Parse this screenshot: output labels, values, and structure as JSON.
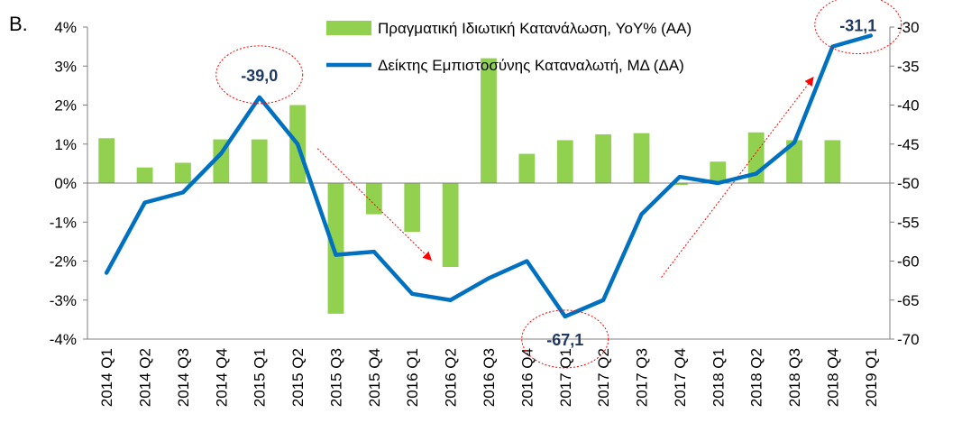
{
  "panel_label": "B.",
  "chart_data": {
    "type": "bar+line",
    "categories": [
      "2014 Q1",
      "2014 Q2",
      "2014 Q3",
      "2014 Q4",
      "2015 Q1",
      "2015 Q2",
      "2015 Q3",
      "2015 Q4",
      "2016 Q1",
      "2016 Q2",
      "2016 Q3",
      "2016 Q4",
      "2017 Q1",
      "2017 Q2",
      "2017 Q3",
      "2017 Q4",
      "2018 Q1",
      "2018 Q2",
      "2018 Q3",
      "2018 Q4",
      "2019 Q1"
    ],
    "series": [
      {
        "name": "Πραγματική Ιδιωτική Κατανάλωση, YoY% (ΑΑ)",
        "kind": "bar",
        "axis": "left",
        "color": "#92d050",
        "values": [
          1.15,
          0.4,
          0.52,
          1.12,
          1.12,
          2.0,
          -3.35,
          -0.8,
          -1.25,
          -2.15,
          3.2,
          0.75,
          1.1,
          1.25,
          1.28,
          -0.05,
          0.55,
          1.3,
          1.1,
          1.1,
          null
        ]
      },
      {
        "name": "Δείκτης Εμπιστοσύνης Καταναλωτή, ΜΔ (ΔΑ)",
        "kind": "line",
        "axis": "right",
        "color": "#0070c0",
        "values": [
          -61.5,
          -52.5,
          -51.2,
          -46.2,
          -39.0,
          -45.0,
          -59.2,
          -58.8,
          -64.2,
          -65.0,
          -62.2,
          -60.0,
          -67.1,
          -65.0,
          -54.0,
          -49.2,
          -50.0,
          -48.8,
          -44.8,
          -32.5,
          -31.1
        ]
      }
    ],
    "y_left": {
      "min": -4,
      "max": 4,
      "step": 1,
      "tick_labels": [
        "-4%",
        "-3%",
        "-2%",
        "-1%",
        "0%",
        "1%",
        "2%",
        "3%",
        "4%"
      ]
    },
    "y_right": {
      "min": -70,
      "max": -30,
      "step": 5,
      "tick_labels": [
        "-70",
        "-65",
        "-60",
        "-55",
        "-50",
        "-45",
        "-40",
        "-35",
        "-30"
      ]
    },
    "annotations": [
      {
        "text": "-39,0",
        "category": "2015 Q1"
      },
      {
        "text": "-67,1",
        "category": "2017 Q1"
      },
      {
        "text": "-31,1",
        "category": "2019 Q1"
      }
    ],
    "trend_arrows": [
      {
        "from": "2015 Q2",
        "to": "2016 Q2",
        "color": "#ff0000"
      },
      {
        "from": "2017 Q3",
        "to": "2018 Q4",
        "color": "#ff0000"
      }
    ],
    "legend_position": "top-center",
    "grid": false
  }
}
